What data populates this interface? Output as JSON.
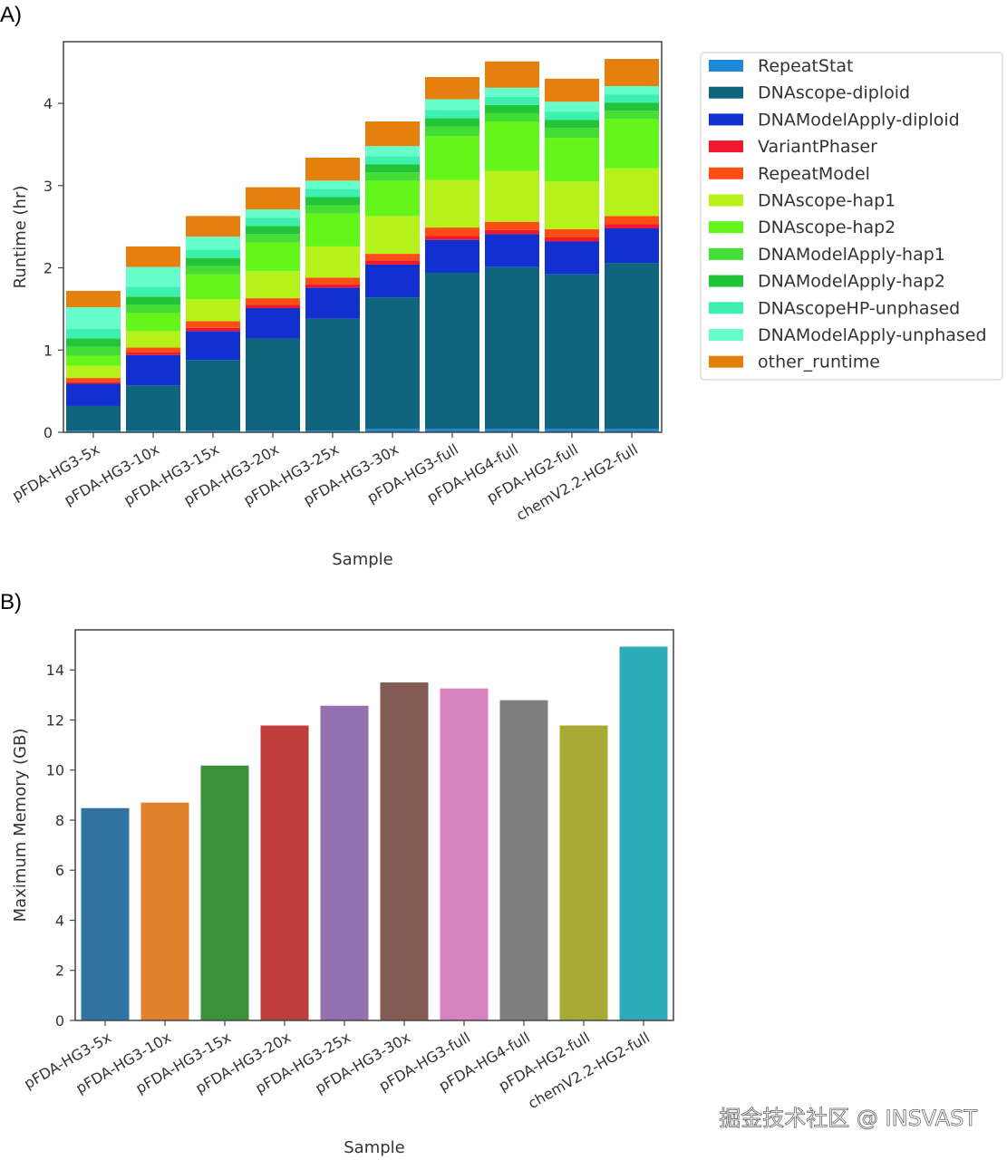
{
  "chart_data": [
    {
      "panel_label": "A)",
      "type": "bar",
      "stacked": true,
      "xlabel": "Sample",
      "ylabel": "Runtime (hr)",
      "ylim": [
        0,
        4.75
      ],
      "yticks": [
        0,
        1,
        2,
        3,
        4
      ],
      "grid": false,
      "legend_placement": "outside-right",
      "categories": [
        "pFDA-HG3-5x",
        "pFDA-HG3-10x",
        "pFDA-HG3-15x",
        "pFDA-HG3-20x",
        "pFDA-HG3-25x",
        "pFDA-HG3-30x",
        "pFDA-HG3-full",
        "pFDA-HG4-full",
        "pFDA-HG2-full",
        "chemV2.2-HG2-full"
      ],
      "series": [
        {
          "name": "RepeatStat",
          "color": "#1f88d6",
          "values": [
            0.02,
            0.02,
            0.02,
            0.02,
            0.02,
            0.04,
            0.04,
            0.04,
            0.04,
            0.04
          ]
        },
        {
          "name": "DNAscope-diploid",
          "color": "#0f657d",
          "values": [
            0.3,
            0.55,
            0.86,
            1.12,
            1.36,
            1.6,
            1.9,
            1.97,
            1.88,
            2.02
          ]
        },
        {
          "name": "DNAModelApply-diploid",
          "color": "#1230d0",
          "values": [
            0.27,
            0.37,
            0.35,
            0.37,
            0.38,
            0.4,
            0.4,
            0.4,
            0.4,
            0.42
          ]
        },
        {
          "name": "VariantPhaser",
          "color": "#f0182f",
          "values": [
            0.02,
            0.03,
            0.04,
            0.04,
            0.04,
            0.05,
            0.05,
            0.05,
            0.05,
            0.05
          ]
        },
        {
          "name": "RepeatModel",
          "color": "#ff4d14",
          "values": [
            0.05,
            0.06,
            0.08,
            0.08,
            0.08,
            0.08,
            0.1,
            0.1,
            0.1,
            0.1
          ]
        },
        {
          "name": "DNAscope-hap1",
          "color": "#b5f21c",
          "values": [
            0.15,
            0.2,
            0.27,
            0.33,
            0.38,
            0.46,
            0.58,
            0.62,
            0.58,
            0.58
          ]
        },
        {
          "name": "DNAscope-hap2",
          "color": "#64f51a",
          "values": [
            0.12,
            0.22,
            0.3,
            0.35,
            0.4,
            0.43,
            0.53,
            0.6,
            0.53,
            0.6
          ]
        },
        {
          "name": "DNAModelApply-hap1",
          "color": "#44dd33",
          "values": [
            0.11,
            0.1,
            0.1,
            0.1,
            0.1,
            0.1,
            0.12,
            0.1,
            0.12,
            0.1
          ]
        },
        {
          "name": "DNAModelApply-hap2",
          "color": "#22c43a",
          "values": [
            0.1,
            0.1,
            0.1,
            0.1,
            0.1,
            0.1,
            0.1,
            0.1,
            0.1,
            0.1
          ]
        },
        {
          "name": "DNAscopeHP-unphased",
          "color": "#3ef0b0",
          "values": [
            0.12,
            0.12,
            0.1,
            0.1,
            0.1,
            0.1,
            0.1,
            0.1,
            0.1,
            0.1
          ]
        },
        {
          "name": "DNAModelApply-unphased",
          "color": "#66ffcc",
          "values": [
            0.26,
            0.24,
            0.16,
            0.1,
            0.1,
            0.12,
            0.13,
            0.11,
            0.12,
            0.1
          ]
        },
        {
          "name": "other_runtime",
          "color": "#e57f0e",
          "values": [
            0.2,
            0.25,
            0.25,
            0.27,
            0.28,
            0.3,
            0.27,
            0.32,
            0.28,
            0.33
          ]
        }
      ]
    },
    {
      "panel_label": "B)",
      "type": "bar",
      "xlabel": "Sample",
      "ylabel": "Maximum Memory (GB)",
      "ylim": [
        0,
        15.6
      ],
      "yticks": [
        0,
        2,
        4,
        6,
        8,
        10,
        12,
        14
      ],
      "grid": false,
      "categories": [
        "pFDA-HG3-5x",
        "pFDA-HG3-10x",
        "pFDA-HG3-15x",
        "pFDA-HG3-20x",
        "pFDA-HG3-25x",
        "pFDA-HG3-30x",
        "pFDA-HG3-full",
        "pFDA-HG4-full",
        "pFDA-HG2-full",
        "chemV2.2-HG2-full"
      ],
      "values": [
        8.48,
        8.7,
        10.18,
        11.78,
        12.57,
        13.5,
        13.26,
        12.79,
        11.78,
        14.93
      ],
      "colors": [
        "#3274a1",
        "#e1812c",
        "#3a923a",
        "#c03d3e",
        "#9372b2",
        "#845b53",
        "#d684bd",
        "#7f7f7f",
        "#a9aa35",
        "#2eabb8"
      ]
    }
  ],
  "watermark": "掘金技术社区 @ INSVAST"
}
